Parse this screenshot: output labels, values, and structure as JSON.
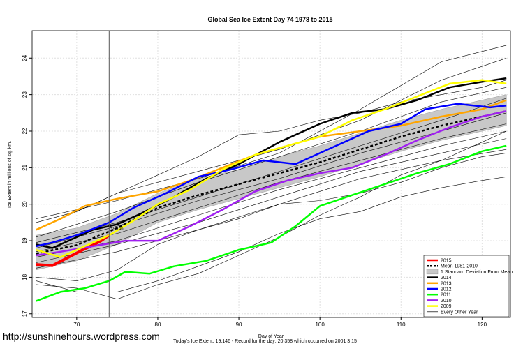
{
  "chart_data": {
    "type": "line",
    "title": "Global Sea Ice Extent Day 74 1978 to 2015",
    "xlabel": "Day of Year",
    "ylabel": "Ice Extent in millions of sq. km.",
    "xlim": [
      64.5,
      123.5
    ],
    "ylim": [
      16.9,
      24.75
    ],
    "xticks": [
      70,
      80,
      90,
      100,
      110,
      120
    ],
    "yticks": [
      17,
      18,
      19,
      20,
      21,
      22,
      23,
      24
    ],
    "current_day": 74,
    "current_value_label": "19.146",
    "legend": [
      {
        "label": "2015",
        "color": "#ff0000",
        "kind": "line"
      },
      {
        "label": "Mean 1981-2010",
        "color": "#000000",
        "kind": "dash"
      },
      {
        "label": "1 Standard Deviation From Mean",
        "color": "#c8c8c8",
        "kind": "box"
      },
      {
        "label": "2014",
        "color": "#000000",
        "kind": "line"
      },
      {
        "label": "2013",
        "color": "#ffa500",
        "kind": "line"
      },
      {
        "label": "2012",
        "color": "#0000ff",
        "kind": "line"
      },
      {
        "label": "2011",
        "color": "#00ff00",
        "kind": "line"
      },
      {
        "label": "2010",
        "color": "#a020f0",
        "kind": "line"
      },
      {
        "label": "2009",
        "color": "#ffff00",
        "kind": "line"
      },
      {
        "label": "Every Other Year",
        "color": "#000000",
        "kind": "thin"
      }
    ],
    "series": [
      {
        "name": "2015",
        "color": "#ff0000",
        "width": 4,
        "x": [
          65,
          67,
          69,
          71,
          72,
          73,
          74
        ],
        "y": [
          18.35,
          18.32,
          18.55,
          18.78,
          18.88,
          19.0,
          19.15
        ]
      },
      {
        "name": "Mean 1981-2010",
        "color": "#000000",
        "width": 2.5,
        "dash": true,
        "x": [
          65,
          70,
          75,
          80,
          85,
          90,
          95,
          100,
          105,
          110,
          115,
          120,
          123
        ],
        "y": [
          18.65,
          18.88,
          19.35,
          19.9,
          20.25,
          20.55,
          20.85,
          21.15,
          21.5,
          21.85,
          22.15,
          22.4,
          22.55
        ]
      },
      {
        "name": "2014",
        "color": "#000000",
        "width": 2.5,
        "x": [
          65,
          67,
          69,
          72,
          75,
          78,
          82,
          86,
          90,
          95,
          100,
          104,
          108,
          112,
          116,
          120,
          123
        ],
        "y": [
          18.9,
          18.8,
          19.0,
          19.3,
          19.45,
          19.75,
          20.2,
          20.7,
          21.1,
          21.7,
          22.2,
          22.5,
          22.6,
          22.85,
          23.2,
          23.35,
          23.45
        ]
      },
      {
        "name": "2013",
        "color": "#ffa500",
        "width": 2.5,
        "x": [
          65,
          68,
          71,
          75,
          80,
          84,
          88,
          92,
          96,
          100,
          105,
          110,
          115,
          120,
          123
        ],
        "y": [
          19.3,
          19.6,
          19.95,
          20.15,
          20.35,
          20.65,
          21.0,
          21.35,
          21.6,
          21.85,
          22.0,
          22.15,
          22.4,
          22.6,
          22.85
        ]
      },
      {
        "name": "2012",
        "color": "#0000ff",
        "width": 2.5,
        "x": [
          65,
          67,
          70,
          74,
          77,
          81,
          85,
          89,
          93,
          97,
          102,
          106,
          110,
          113,
          117,
          121,
          123
        ],
        "y": [
          18.85,
          18.95,
          19.15,
          19.5,
          19.9,
          20.3,
          20.75,
          20.95,
          21.2,
          21.1,
          21.6,
          22.0,
          22.2,
          22.6,
          22.75,
          22.65,
          22.7
        ]
      },
      {
        "name": "2011",
        "color": "#00ff00",
        "width": 2.5,
        "x": [
          65,
          68,
          71,
          74,
          76,
          79,
          82,
          86,
          90,
          94,
          97,
          100,
          104,
          108,
          112,
          116,
          120,
          123
        ],
        "y": [
          17.35,
          17.6,
          17.7,
          17.9,
          18.15,
          18.1,
          18.3,
          18.45,
          18.75,
          18.95,
          19.4,
          19.95,
          20.25,
          20.55,
          20.85,
          21.1,
          21.45,
          21.6
        ]
      },
      {
        "name": "2010",
        "color": "#a020f0",
        "width": 2.5,
        "x": [
          65,
          68,
          72,
          76,
          80,
          84,
          88,
          92,
          96,
          100,
          104,
          108,
          112,
          116,
          120,
          123
        ],
        "y": [
          18.6,
          18.7,
          18.85,
          19.0,
          19.0,
          19.4,
          19.85,
          20.35,
          20.65,
          20.85,
          21.0,
          21.35,
          21.75,
          22.1,
          22.4,
          22.55
        ]
      },
      {
        "name": "2009",
        "color": "#ffff00",
        "width": 2.5,
        "x": [
          65,
          68,
          71,
          74,
          77,
          80,
          84,
          88,
          92,
          96,
          100,
          104,
          108,
          112,
          116,
          120,
          123
        ],
        "y": [
          18.75,
          18.55,
          18.85,
          19.15,
          19.55,
          20.0,
          20.4,
          20.95,
          21.35,
          21.6,
          21.85,
          22.3,
          22.6,
          22.95,
          23.3,
          23.4,
          23.3
        ]
      }
    ],
    "thin_series": [
      {
        "x": [
          65,
          75,
          85,
          95,
          105,
          115,
          123
        ],
        "y": [
          19.6,
          20.1,
          20.7,
          21.4,
          22.6,
          23.9,
          24.35
        ]
      },
      {
        "x": [
          65,
          75,
          85,
          95,
          105,
          115,
          123
        ],
        "y": [
          19.3,
          20.3,
          20.9,
          21.5,
          22.3,
          23.4,
          24.0
        ]
      },
      {
        "x": [
          65,
          75,
          85,
          95,
          105,
          115,
          123
        ],
        "y": [
          19.1,
          19.8,
          20.6,
          21.3,
          22.0,
          22.8,
          23.2
        ]
      },
      {
        "x": [
          65,
          75,
          85,
          95,
          105,
          115,
          123
        ],
        "y": [
          18.95,
          19.5,
          20.2,
          20.9,
          21.6,
          22.3,
          22.9
        ]
      },
      {
        "x": [
          65,
          75,
          85,
          95,
          105,
          115,
          123
        ],
        "y": [
          18.8,
          19.4,
          20.1,
          20.7,
          21.4,
          22.0,
          22.5
        ]
      },
      {
        "x": [
          65,
          75,
          85,
          95,
          105,
          115,
          123
        ],
        "y": [
          18.7,
          19.2,
          19.9,
          20.6,
          21.2,
          21.8,
          22.2
        ]
      },
      {
        "x": [
          65,
          75,
          85,
          95,
          105,
          115,
          123
        ],
        "y": [
          18.55,
          19.0,
          19.7,
          20.4,
          21.0,
          21.6,
          22.0
        ]
      },
      {
        "x": [
          65,
          75,
          85,
          95,
          105,
          115,
          123
        ],
        "y": [
          18.4,
          18.9,
          19.5,
          20.2,
          20.9,
          21.4,
          21.8
        ]
      },
      {
        "x": [
          65,
          75,
          85,
          95,
          105,
          115,
          123
        ],
        "y": [
          18.25,
          18.7,
          19.3,
          20.0,
          20.7,
          21.2,
          21.5
        ]
      },
      {
        "x": [
          65,
          70,
          75,
          80,
          85,
          90,
          95,
          100,
          105,
          110,
          115,
          120,
          123
        ],
        "y": [
          18.0,
          17.9,
          18.2,
          18.9,
          19.3,
          19.6,
          20.0,
          20.1,
          20.3,
          20.6,
          21.0,
          21.3,
          21.4
        ]
      },
      {
        "x": [
          65,
          70,
          75,
          80,
          85,
          90,
          95,
          100,
          105,
          110,
          115,
          120,
          123
        ],
        "y": [
          17.9,
          17.6,
          17.6,
          17.9,
          18.3,
          18.7,
          19.2,
          19.6,
          19.8,
          20.2,
          20.45,
          20.65,
          20.75
        ]
      },
      {
        "x": [
          65,
          70,
          75,
          80,
          85,
          90,
          95,
          100,
          105,
          110,
          115,
          120,
          123
        ],
        "y": [
          17.8,
          17.7,
          17.4,
          17.8,
          18.1,
          18.6,
          19.1,
          19.7,
          20.2,
          20.8,
          21.2,
          21.7,
          22.0
        ]
      },
      {
        "x": [
          65,
          70,
          75,
          80,
          85,
          90,
          95,
          100,
          105,
          110,
          115,
          120,
          123
        ],
        "y": [
          19.5,
          19.8,
          20.3,
          20.8,
          21.3,
          21.9,
          22.0,
          22.3,
          22.5,
          22.8,
          23.0,
          23.2,
          23.4
        ]
      }
    ],
    "sd_band": {
      "x": [
        65,
        70,
        75,
        80,
        85,
        90,
        95,
        100,
        105,
        110,
        115,
        120,
        123
      ],
      "upper": [
        19.15,
        19.35,
        19.75,
        20.3,
        20.7,
        20.95,
        21.3,
        21.6,
        21.95,
        22.3,
        22.6,
        22.85,
        23.0
      ],
      "lower": [
        18.2,
        18.45,
        18.9,
        19.5,
        19.85,
        20.15,
        20.45,
        20.75,
        21.1,
        21.45,
        21.75,
        22.0,
        22.15
      ]
    }
  },
  "watermark": "http://sunshinehours.wordpress.com",
  "footer_note": "Today's Ice Extent: 19.146  - Record for the day: 20.358 which occurred on 2001 3 15"
}
